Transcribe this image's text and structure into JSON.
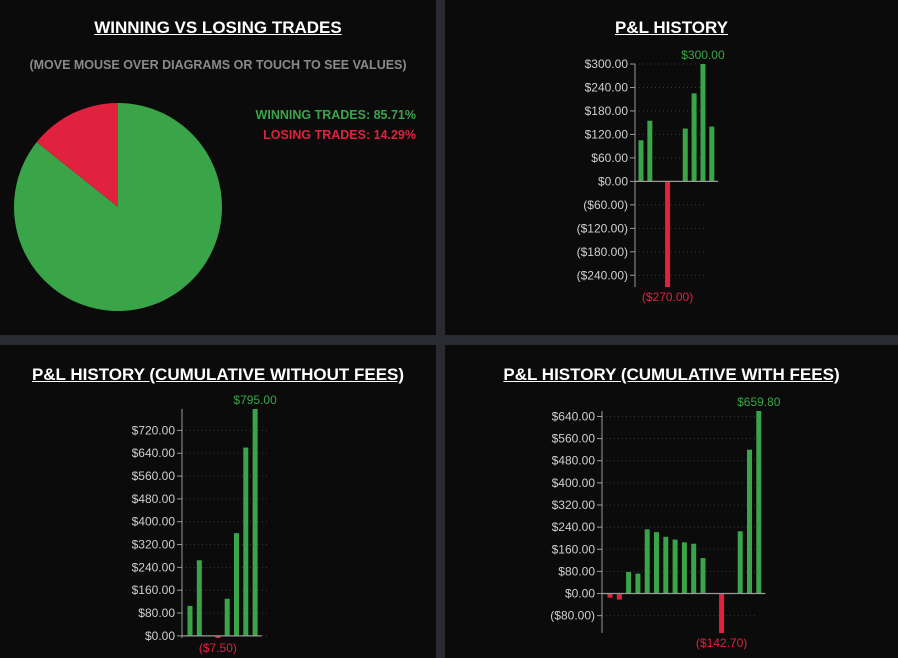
{
  "colors": {
    "positive": "#3aa548",
    "negative": "#e0223f",
    "panel": "#0b0b0b",
    "axis": "#9a9a9a"
  },
  "chart_data": [
    {
      "type": "pie",
      "title": "WINNING VS LOSING TRADES",
      "subtitle": "(MOVE MOUSE OVER DIAGRAMS OR TOUCH TO SEE VALUES)",
      "slices": [
        {
          "label": "WINNING TRADES: 85.71%",
          "value": 85.71
        },
        {
          "label": "LOSING TRADES: 14.29%",
          "value": 14.29
        }
      ]
    },
    {
      "type": "bar",
      "title": "P&L HISTORY",
      "ylim": [
        -270,
        300
      ],
      "ticks": [
        300,
        240,
        180,
        120,
        60,
        0,
        -60,
        -120,
        -180,
        -240
      ],
      "tick_labels": [
        "$300.00",
        "$240.00",
        "$180.00",
        "$120.00",
        "$60.00",
        "$0.00",
        "($60.00)",
        "($120.00)",
        "($180.00)",
        "($240.00)"
      ],
      "values": [
        105,
        155,
        0,
        -270,
        0,
        135,
        225,
        300,
        140
      ],
      "max_label": "$300.00",
      "min_label": "($270.00)"
    },
    {
      "type": "bar",
      "title": "P&L HISTORY (CUMULATIVE WITHOUT FEES)",
      "ylim": [
        -7.5,
        795
      ],
      "ticks": [
        720,
        640,
        560,
        480,
        400,
        320,
        240,
        160,
        80,
        0
      ],
      "tick_labels": [
        "$720.00",
        "$640.00",
        "$560.00",
        "$480.00",
        "$400.00",
        "$320.00",
        "$240.00",
        "$160.00",
        "$80.00",
        "$0.00"
      ],
      "values": [
        105,
        265,
        0,
        -7.5,
        130,
        360,
        660,
        795
      ],
      "max_label": "$795.00",
      "min_label": "($7.50)"
    },
    {
      "type": "bar",
      "title": "P&L HISTORY (CUMULATIVE WITH FEES)",
      "ylim": [
        -142.7,
        659.8
      ],
      "ticks": [
        640,
        560,
        480,
        400,
        320,
        240,
        160,
        80,
        0,
        -80
      ],
      "tick_labels": [
        "$640.00",
        "$560.00",
        "$480.00",
        "$400.00",
        "$320.00",
        "$240.00",
        "$160.00",
        "$80.00",
        "$0.00",
        "($80.00)"
      ],
      "values": [
        -15,
        -22,
        78,
        72,
        232,
        222,
        205,
        195,
        185,
        180,
        128,
        0,
        -142.7,
        0,
        225,
        520,
        659.8
      ],
      "max_label": "$659.80",
      "min_label": "($142.70)"
    }
  ]
}
